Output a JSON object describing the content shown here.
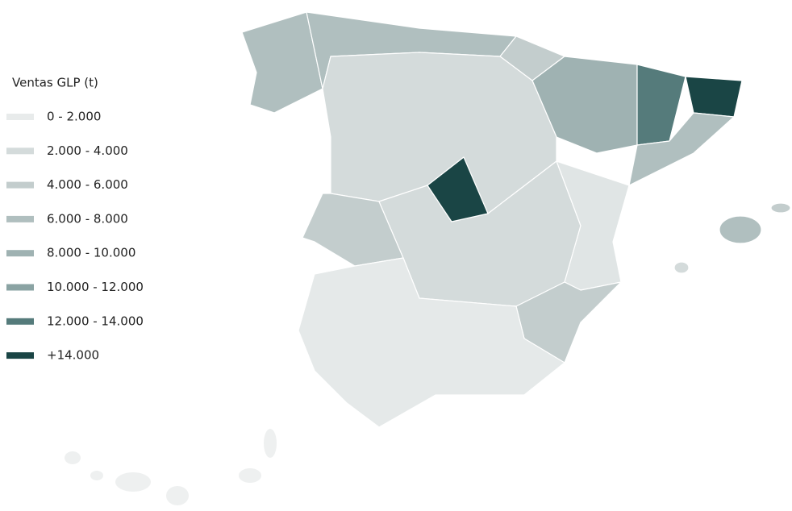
{
  "legend": {
    "title": "Ventas GLP (t)",
    "items": [
      {
        "label": "0 - 2.000",
        "color": "#e8ebeb"
      },
      {
        "label": "2.000 - 4.000",
        "color": "#d4dbdb"
      },
      {
        "label": "4.000 - 6.000",
        "color": "#c3cdcd"
      },
      {
        "label": "6.000 - 8.000",
        "color": "#b0bfbf"
      },
      {
        "label": "8.000 - 10.000",
        "color": "#9fb2b2"
      },
      {
        "label": "10.000 - 12.000",
        "color": "#8aa3a3"
      },
      {
        "label": "12.000 - 14.000",
        "color": "#557b7b"
      },
      {
        "label": "+14.000",
        "color": "#1a4545"
      }
    ]
  }
}
